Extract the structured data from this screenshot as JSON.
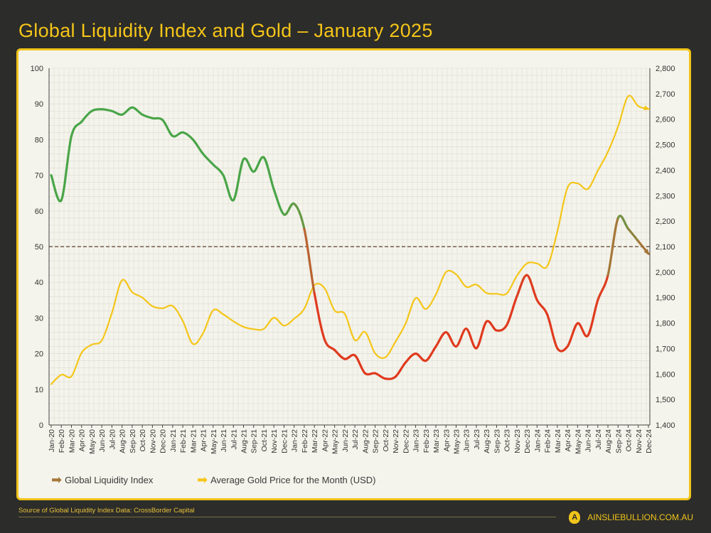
{
  "title": "Global Liquidity Index and Gold – January 2025",
  "source": "Source of Global Liquidity Index Data: CrossBorder Capital",
  "brand": "AINSLIEBULLION.COM.AU",
  "logo_letter": "A",
  "colors": {
    "gold": "#f5c518",
    "gli_high": "#4aa548",
    "gli_mid": "#a6773a",
    "gli_low": "#e03a1e",
    "background": "#2c2c2a",
    "panel": "#f4f4ec"
  },
  "chart_data": {
    "type": "line",
    "title": "Global Liquidity Index and Gold – January 2025",
    "categories": [
      "Jan-20",
      "Feb-20",
      "Mar-20",
      "Apr-20",
      "May-20",
      "Jun-20",
      "Jul-20",
      "Aug-20",
      "Sep-20",
      "Oct-20",
      "Nov-20",
      "Dec-20",
      "Jan-21",
      "Feb-21",
      "Mar-21",
      "Apr-21",
      "May-21",
      "Jun-21",
      "Jul-21",
      "Aug-21",
      "Sep-21",
      "Oct-21",
      "Nov-21",
      "Dec-21",
      "Jan-22",
      "Feb-22",
      "Mar-22",
      "Apr-22",
      "May-22",
      "Jun-22",
      "Jul-22",
      "Aug-22",
      "Sep-22",
      "Oct-22",
      "Nov-22",
      "Dec-22",
      "Jan-23",
      "Feb-23",
      "Mar-23",
      "Apr-23",
      "May-23",
      "Jun-23",
      "Jul-23",
      "Aug-23",
      "Sep-23",
      "Oct-23",
      "Nov-23",
      "Dec-23",
      "Jan-24",
      "Feb-24",
      "Mar-24",
      "Apr-24",
      "May-24",
      "Jun-24",
      "Jul-24",
      "Aug-24",
      "Sep-24",
      "Oct-24",
      "Nov-24",
      "Dec-24"
    ],
    "left_axis": {
      "ylim": [
        0,
        100
      ],
      "ticks": [
        "0",
        "10",
        "20",
        "30",
        "40",
        "50",
        "60",
        "70",
        "80",
        "90",
        "100"
      ]
    },
    "right_axis": {
      "ylim": [
        1400,
        2800
      ],
      "ticks": [
        "1,400",
        "1,500",
        "1,600",
        "1,700",
        "1,800",
        "1,900",
        "2,000",
        "2,100",
        "2,200",
        "2,300",
        "2,400",
        "2,500",
        "2,600",
        "2,700",
        "2,800"
      ]
    },
    "reference_line": {
      "axis": "left",
      "value": 50,
      "style": "dashed"
    },
    "grid": true,
    "legend_placement": "bottom-left",
    "series": [
      {
        "name": "Global Liquidity Index",
        "axis": "left",
        "values": [
          70,
          63,
          81,
          85,
          88,
          88.5,
          88,
          87,
          89,
          87,
          86,
          85.5,
          81,
          82,
          80,
          76,
          73,
          70,
          63,
          74.5,
          71,
          75,
          66,
          59,
          62,
          55,
          37,
          24,
          21,
          18.5,
          19.5,
          14.5,
          14.5,
          13,
          13.5,
          17.5,
          20,
          18,
          22,
          26,
          22,
          27,
          21.5,
          29,
          26.5,
          28,
          36,
          42,
          35,
          31,
          21.5,
          22,
          28.5,
          25,
          35,
          42,
          58,
          55,
          51.5,
          48
        ]
      },
      {
        "name": "Average Gold Price for the Month (USD)",
        "axis": "right",
        "values": [
          1560,
          1597,
          1591,
          1683,
          1715,
          1732,
          1840,
          1968,
          1921,
          1900,
          1866,
          1858,
          1867,
          1808,
          1718,
          1760,
          1850,
          1834,
          1807,
          1785,
          1776,
          1777,
          1821,
          1790,
          1817,
          1856,
          1948,
          1937,
          1849,
          1836,
          1733,
          1765,
          1681,
          1665,
          1726,
          1797,
          1898,
          1855,
          1912,
          2000,
          1991,
          1942,
          1951,
          1918,
          1915,
          1916,
          1985,
          2034,
          2034,
          2023,
          2159,
          2331,
          2348,
          2326,
          2398,
          2472,
          2571,
          2690,
          2651,
          2640
        ]
      }
    ]
  }
}
